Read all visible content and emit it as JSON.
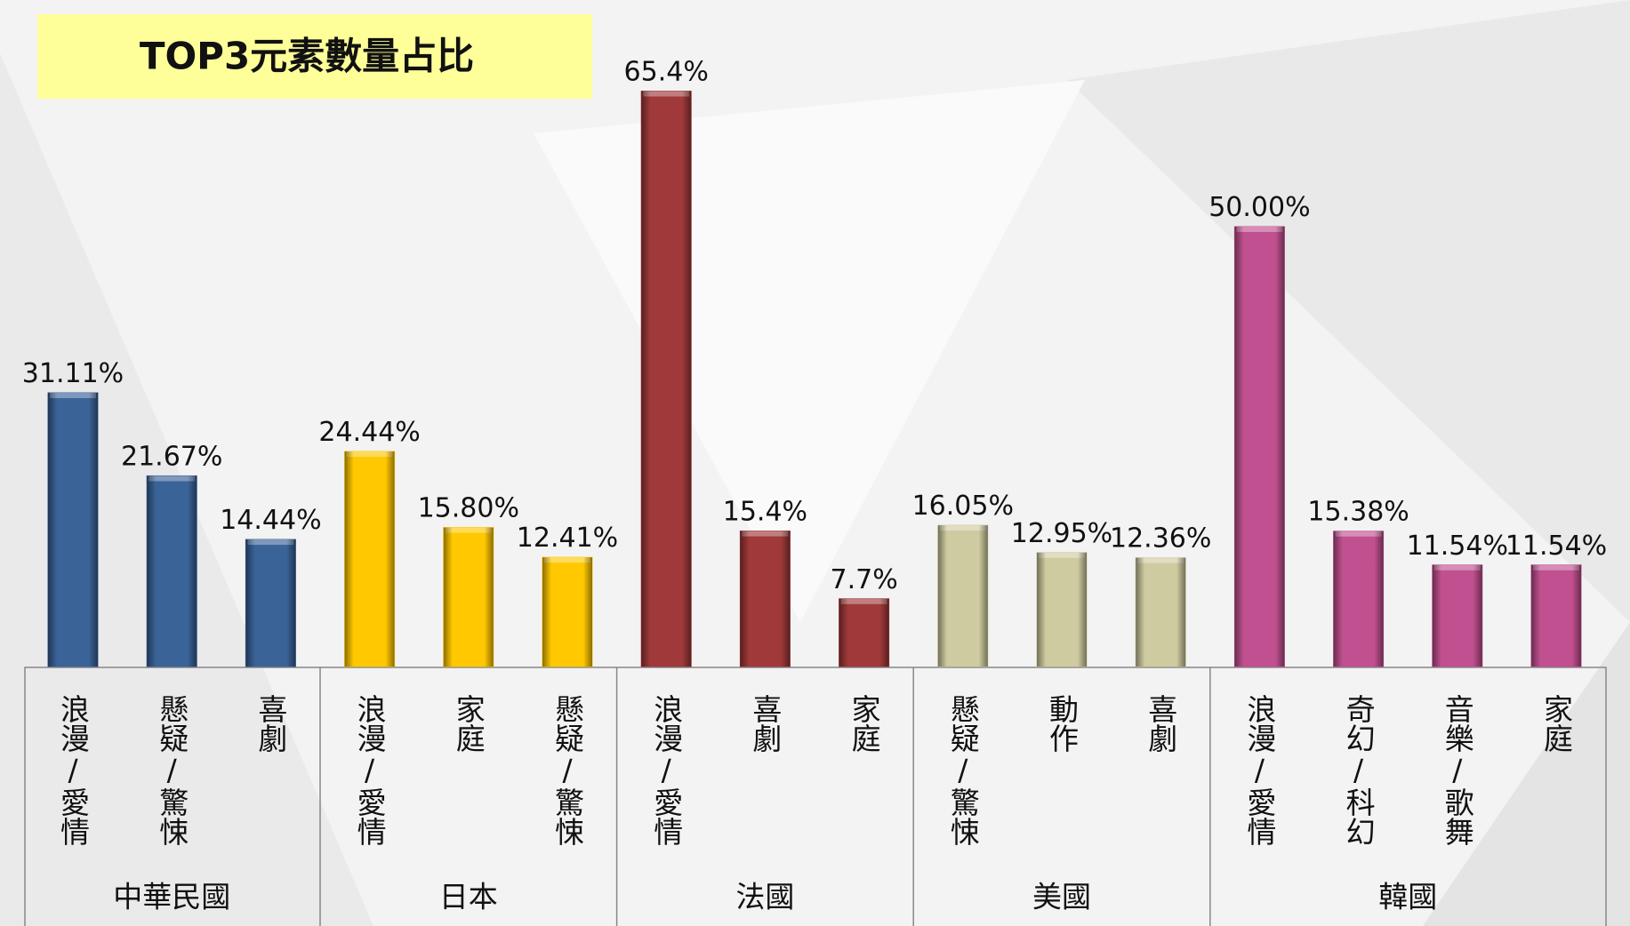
{
  "chart_data": {
    "type": "bar",
    "title": "TOP3元素數量占比",
    "groups": [
      {
        "name": "中華民國",
        "color": "#3a6398",
        "categories": [
          "浪漫/愛情",
          "懸疑/驚悚",
          "喜劇"
        ],
        "values": [
          31.11,
          21.67,
          14.44
        ],
        "value_labels": [
          "31.11%",
          "21.67%",
          "14.44%"
        ]
      },
      {
        "name": "日本",
        "color": "#ffc800",
        "categories": [
          "浪漫/愛情",
          "家庭",
          "懸疑/驚悚"
        ],
        "values": [
          24.44,
          15.8,
          12.41
        ],
        "value_labels": [
          "24.44%",
          "15.80%",
          "12.41%"
        ]
      },
      {
        "name": "法國",
        "color": "#a0393a",
        "categories": [
          "浪漫/愛情",
          "喜劇",
          "家庭"
        ],
        "values": [
          65.4,
          15.4,
          7.7
        ],
        "value_labels": [
          "65.4%",
          "15.4%",
          "7.7%"
        ]
      },
      {
        "name": "美國",
        "color": "#cfcba0",
        "categories": [
          "懸疑/驚悚",
          "動作",
          "喜劇"
        ],
        "values": [
          16.05,
          12.95,
          12.36
        ],
        "value_labels": [
          "16.05%",
          "12.95%",
          "12.36%"
        ]
      },
      {
        "name": "韓國",
        "color": "#c0508f",
        "categories": [
          "浪漫/愛情",
          "奇幻/科幻",
          "音樂/歌舞",
          "家庭"
        ],
        "values": [
          50,
          15.38,
          11.54,
          11.54
        ],
        "value_labels": [
          "50.00%",
          "15.38%",
          "11.54%",
          "11.54%"
        ]
      }
    ]
  }
}
